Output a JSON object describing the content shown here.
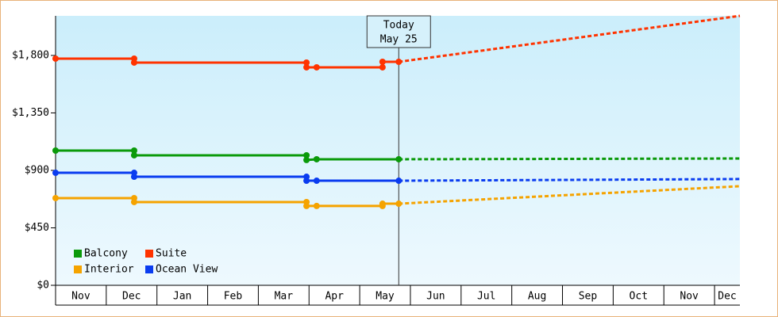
{
  "chart_data": {
    "type": "line",
    "categories": [
      "Nov",
      "Dec",
      "Jan",
      "Feb",
      "Mar",
      "Apr",
      "May",
      "Jun",
      "Jul",
      "Aug",
      "Sep",
      "Oct",
      "Nov",
      "Dec"
    ],
    "xlim": [
      0,
      13.5
    ],
    "xticks": [
      0,
      1,
      2,
      3,
      4,
      5,
      6,
      7,
      8,
      9,
      10,
      11,
      12,
      13
    ],
    "ylim": [
      0,
      2110
    ],
    "yticks": [
      {
        "value": 0,
        "label": "$0"
      },
      {
        "value": 450,
        "label": "$450"
      },
      {
        "value": 900,
        "label": "$900"
      },
      {
        "value": 1350,
        "label": "$1,350"
      },
      {
        "value": 1800,
        "label": "$1,800"
      }
    ],
    "today": {
      "x": 6.77,
      "label": "Today",
      "date": "May 25"
    },
    "series": [
      {
        "name": "Balcony",
        "color": "#0a9a0a",
        "x": [
          0,
          1.55,
          1.55,
          4.95,
          4.95,
          5.15,
          6.77
        ],
        "values": [
          1055,
          1055,
          1018,
          1018,
          981,
          987,
          987
        ],
        "projection": {
          "x": [
            6.77,
            13.5
          ],
          "values": [
            987,
            993
          ]
        }
      },
      {
        "name": "Suite",
        "color": "#ff3300",
        "x": [
          0,
          1.55,
          1.55,
          4.95,
          4.95,
          5.15,
          6.45,
          6.45,
          6.77
        ],
        "values": [
          1775,
          1775,
          1744,
          1744,
          1707,
          1707,
          1707,
          1750,
          1750
        ],
        "projection": {
          "x": [
            6.77,
            13.5
          ],
          "values": [
            1750,
            2110
          ]
        }
      },
      {
        "name": "Interior",
        "color": "#f5a300",
        "x": [
          0,
          1.55,
          1.55,
          4.95,
          4.95,
          5.15,
          6.45,
          6.45,
          6.77
        ],
        "values": [
          683,
          683,
          652,
          652,
          621,
          621,
          621,
          639,
          639
        ],
        "projection": {
          "x": [
            6.77,
            13.5
          ],
          "values": [
            639,
            776
          ]
        }
      },
      {
        "name": "Ocean View",
        "color": "#0a3cf0",
        "x": [
          0,
          1.55,
          1.55,
          4.95,
          4.95,
          5.15,
          6.77
        ],
        "values": [
          881,
          881,
          850,
          850,
          819,
          819,
          819
        ],
        "projection": {
          "x": [
            6.77,
            13.5
          ],
          "values": [
            819,
            832
          ]
        }
      }
    ]
  }
}
